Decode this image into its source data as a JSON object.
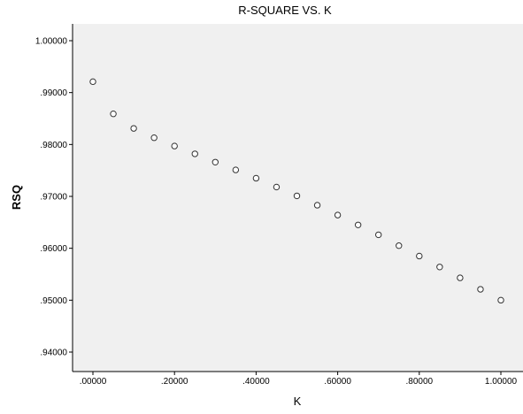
{
  "colors": {
    "plot_background": "#f0f0f0",
    "axis_line": "#000000",
    "point_stroke": "#333333",
    "point_fill": "#ffffff"
  },
  "chart_data": {
    "type": "scatter",
    "title": "R-SQUARE VS. K",
    "xlabel": "K",
    "ylabel": "RSQ",
    "xlim": [
      -0.05,
      1.05
    ],
    "ylim": [
      0.9365,
      1.0045
    ],
    "grid": false,
    "legend": "none",
    "xticks": [
      0.0,
      0.2,
      0.4,
      0.6,
      0.8,
      1.0
    ],
    "xtick_labels": [
      ".00000",
      ".20000",
      ".40000",
      ".60000",
      ".80000",
      "1.00000"
    ],
    "yticks": [
      0.94,
      0.95,
      0.96,
      0.97,
      0.98,
      0.99,
      1.0
    ],
    "ytick_labels": [
      ".94000",
      ".95000",
      ".96000",
      ".97000",
      ".98000",
      ".99000",
      "1.00000"
    ],
    "marker": "hollow-circle",
    "x": [
      0.0,
      0.05,
      0.1,
      0.15,
      0.2,
      0.25,
      0.3,
      0.35,
      0.4,
      0.45,
      0.5,
      0.55,
      0.6,
      0.65,
      0.7,
      0.75,
      0.8,
      0.85,
      0.9,
      0.95,
      1.0
    ],
    "y": [
      0.9921,
      0.9859,
      0.9831,
      0.9813,
      0.9797,
      0.9782,
      0.9766,
      0.9751,
      0.9735,
      0.9718,
      0.9701,
      0.9683,
      0.9664,
      0.9645,
      0.9626,
      0.9605,
      0.9585,
      0.9564,
      0.9543,
      0.9521,
      0.95
    ]
  }
}
